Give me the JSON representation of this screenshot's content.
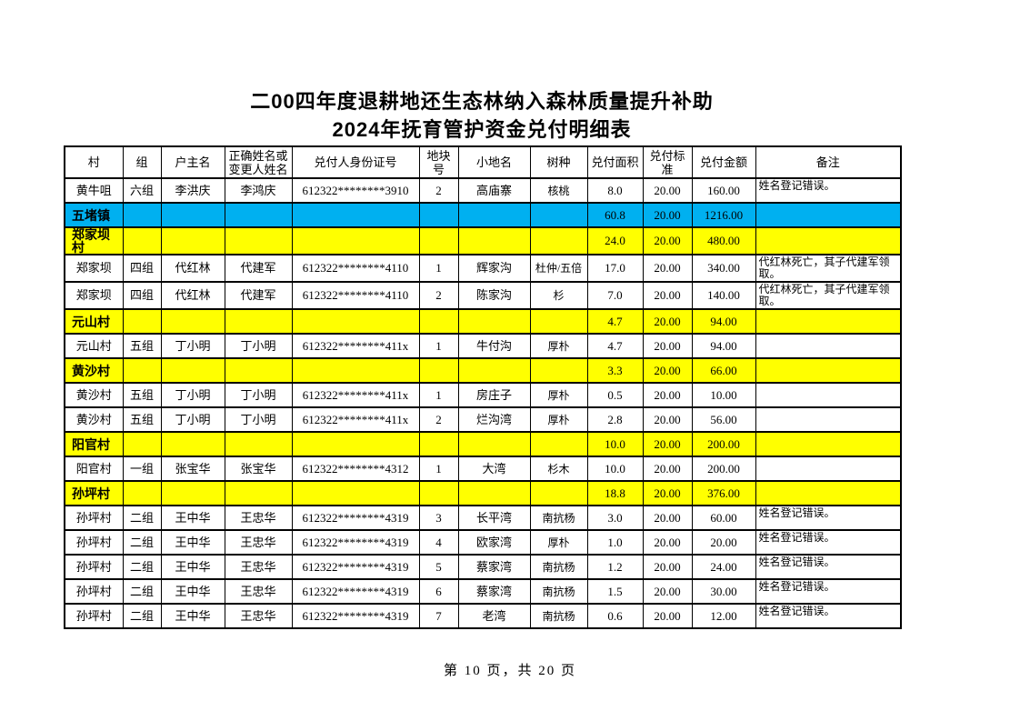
{
  "title": {
    "line1": "二00四年度退耕地还生态林纳入森林质量提升补助",
    "line2": "2024年抚育管护资金兑付明细表"
  },
  "colors": {
    "town_summary_bg": "#00B0F0",
    "village_summary_bg": "#FFFF00",
    "border": "#000000",
    "page_bg": "#FFFFFF"
  },
  "table": {
    "headers": [
      "村",
      "组",
      "户主名",
      "正确姓名或\n变更人姓名",
      "兑付人身份证号",
      "地块号",
      "小地名",
      "树种",
      "兑付面积",
      "兑付标准",
      "兑付金额",
      "备注"
    ],
    "rows": [
      {
        "type": "data",
        "cells": [
          "黄牛咀",
          "六组",
          "李洪庆",
          "李鸿庆",
          "612322********3910",
          "2",
          "高庙寨",
          "核桃",
          "8.0",
          "20.00",
          "160.00",
          "姓名登记错误。"
        ]
      },
      {
        "type": "town_summary",
        "cells": [
          "五堵镇",
          "",
          "",
          "",
          "",
          "",
          "",
          "",
          "60.8",
          "20.00",
          "1216.00",
          ""
        ]
      },
      {
        "type": "village_summary",
        "cells": [
          "郑家坝村",
          "",
          "",
          "",
          "",
          "",
          "",
          "",
          "24.0",
          "20.00",
          "480.00",
          ""
        ]
      },
      {
        "type": "data",
        "cells": [
          "郑家坝",
          "四组",
          "代红林",
          "代建军",
          "612322********4110",
          "1",
          "辉家沟",
          "杜仲/五倍",
          "17.0",
          "20.00",
          "340.00",
          "代红林死亡，其子代建军领取。"
        ]
      },
      {
        "type": "data",
        "cells": [
          "郑家坝",
          "四组",
          "代红林",
          "代建军",
          "612322********4110",
          "2",
          "陈家沟",
          "杉",
          "7.0",
          "20.00",
          "140.00",
          "代红林死亡，其子代建军领取。"
        ]
      },
      {
        "type": "village_summary",
        "cells": [
          "元山村",
          "",
          "",
          "",
          "",
          "",
          "",
          "",
          "4.7",
          "20.00",
          "94.00",
          ""
        ]
      },
      {
        "type": "data",
        "cells": [
          "元山村",
          "五组",
          "丁小明",
          "丁小明",
          "612322********411x",
          "1",
          "牛付沟",
          "厚朴",
          "4.7",
          "20.00",
          "94.00",
          ""
        ]
      },
      {
        "type": "village_summary",
        "cells": [
          "黄沙村",
          "",
          "",
          "",
          "",
          "",
          "",
          "",
          "3.3",
          "20.00",
          "66.00",
          ""
        ]
      },
      {
        "type": "data",
        "cells": [
          "黄沙村",
          "五组",
          "丁小明",
          "丁小明",
          "612322********411x",
          "1",
          "房庄子",
          "厚朴",
          "0.5",
          "20.00",
          "10.00",
          ""
        ]
      },
      {
        "type": "data",
        "cells": [
          "黄沙村",
          "五组",
          "丁小明",
          "丁小明",
          "612322********411x",
          "2",
          "烂沟湾",
          "厚朴",
          "2.8",
          "20.00",
          "56.00",
          ""
        ]
      },
      {
        "type": "village_summary",
        "cells": [
          "阳官村",
          "",
          "",
          "",
          "",
          "",
          "",
          "",
          "10.0",
          "20.00",
          "200.00",
          ""
        ]
      },
      {
        "type": "data",
        "cells": [
          "阳官村",
          "一组",
          "张宝华",
          "张宝华",
          "612322********4312",
          "1",
          "大湾",
          "杉木",
          "10.0",
          "20.00",
          "200.00",
          ""
        ]
      },
      {
        "type": "village_summary",
        "cells": [
          "孙坪村",
          "",
          "",
          "",
          "",
          "",
          "",
          "",
          "18.8",
          "20.00",
          "376.00",
          ""
        ]
      },
      {
        "type": "data",
        "cells": [
          "孙坪村",
          "二组",
          "王中华",
          "王忠华",
          "612322********4319",
          "3",
          "长平湾",
          "南抗杨",
          "3.0",
          "20.00",
          "60.00",
          "姓名登记错误。"
        ]
      },
      {
        "type": "data",
        "cells": [
          "孙坪村",
          "二组",
          "王中华",
          "王忠华",
          "612322********4319",
          "4",
          "欧家湾",
          "厚朴",
          "1.0",
          "20.00",
          "20.00",
          "姓名登记错误。"
        ]
      },
      {
        "type": "data",
        "cells": [
          "孙坪村",
          "二组",
          "王中华",
          "王忠华",
          "612322********4319",
          "5",
          "蔡家湾",
          "南抗杨",
          "1.2",
          "20.00",
          "24.00",
          "姓名登记错误。"
        ]
      },
      {
        "type": "data",
        "cells": [
          "孙坪村",
          "二组",
          "王中华",
          "王忠华",
          "612322********4319",
          "6",
          "蔡家湾",
          "南抗杨",
          "1.5",
          "20.00",
          "30.00",
          "姓名登记错误。"
        ]
      },
      {
        "type": "data",
        "cells": [
          "孙坪村",
          "二组",
          "王中华",
          "王忠华",
          "612322********4319",
          "7",
          "老湾",
          "南抗杨",
          "0.6",
          "20.00",
          "12.00",
          "姓名登记错误。"
        ]
      }
    ]
  },
  "footer": {
    "text": "第 10 页，共 20 页"
  }
}
